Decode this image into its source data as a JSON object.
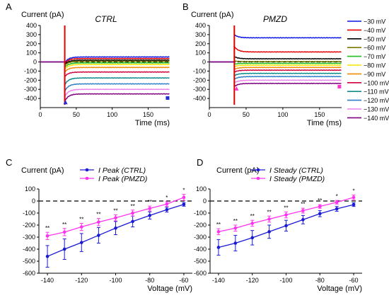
{
  "chart_data": [
    {
      "panel": "A",
      "type": "line",
      "title": "CTRL",
      "ylabel": "Current (pA)",
      "xlabel": "Time (ms)",
      "xlim": [
        0,
        180
      ],
      "ylim": [
        -500,
        400
      ],
      "xticks": [
        0,
        50,
        100,
        150
      ],
      "yticks": [
        -400,
        -300,
        -200,
        -100,
        0,
        100,
        200,
        300,
        400
      ],
      "x_tick_labels": [
        "0",
        "50",
        "100",
        "150"
      ],
      "y_tick_labels": [
        "-400",
        "-300",
        "-200",
        "-100",
        "0",
        "100",
        "200",
        "300",
        "400"
      ],
      "x_label_suffix": "175",
      "series": [
        {
          "name": "−30 mV",
          "color": "#0a15e6",
          "start": 0,
          "peak": -10,
          "steady": 55
        },
        {
          "name": "−40 mV",
          "color": "#e60000",
          "start": 0,
          "peak": -20,
          "steady": 38
        },
        {
          "name": "−50 mV",
          "color": "#000000",
          "start": 0,
          "peak": -30,
          "steady": 20
        },
        {
          "name": "−60 mV",
          "color": "#7a7a00",
          "start": 0,
          "peak": -40,
          "steady": 8
        },
        {
          "name": "−70 mV",
          "color": "#20c020",
          "start": 0,
          "peak": -60,
          "steady": -10
        },
        {
          "name": "−80 mV",
          "color": "#f2e600",
          "start": 0,
          "peak": -80,
          "steady": -28
        },
        {
          "name": "−90 mV",
          "color": "#f28c00",
          "start": 0,
          "peak": -110,
          "steady": -60
        },
        {
          "name": "−100 mV",
          "color": "#d0003c",
          "start": 0,
          "peak": -160,
          "steady": -110
        },
        {
          "name": "−110 mV",
          "color": "#0f8c8c",
          "start": 0,
          "peak": -250,
          "steady": -175
        },
        {
          "name": "−120 mV",
          "color": "#2a7fc8",
          "start": 0,
          "peak": -320,
          "steady": -240
        },
        {
          "name": "−130 mV",
          "color": "#ee82ee",
          "start": 0,
          "peak": -380,
          "steady": -300
        },
        {
          "name": "−140 mV",
          "color": "#800080",
          "start": 0,
          "peak": -430,
          "steady": -350
        }
      ],
      "markers": [
        {
          "symbol": "triangle",
          "x": 35,
          "y": -440,
          "color": "#2030d0"
        },
        {
          "symbol": "square",
          "x": 177,
          "y": -395,
          "color": "#2030d0"
        }
      ]
    },
    {
      "panel": "B",
      "type": "line",
      "title": "PMZD",
      "ylabel": "Current (pA)",
      "xlabel": "Time (ms)",
      "xlim": [
        0,
        180
      ],
      "ylim": [
        -500,
        400
      ],
      "xticks": [
        0,
        50,
        100,
        150
      ],
      "yticks": [
        -400,
        -300,
        -200,
        -100,
        0,
        100,
        200,
        300,
        400
      ],
      "x_tick_labels": [
        "0",
        "50",
        "100",
        "150"
      ],
      "y_tick_labels": [
        "-400",
        "-300",
        "-200",
        "-100",
        "0",
        "100",
        "200",
        "300",
        "400"
      ],
      "series": [
        {
          "name": "−30 mV",
          "color": "#0a15e6",
          "start": 0,
          "peak": 300,
          "steady": 265
        },
        {
          "name": "−40 mV",
          "color": "#e60000",
          "start": 0,
          "peak": 170,
          "steady": 110
        },
        {
          "name": "−50 mV",
          "color": "#000000",
          "start": 0,
          "peak": 60,
          "steady": 35
        },
        {
          "name": "−60 mV",
          "color": "#7a7a00",
          "start": 0,
          "peak": 10,
          "steady": 5
        },
        {
          "name": "−70 mV",
          "color": "#20c020",
          "start": 0,
          "peak": -25,
          "steady": -15
        },
        {
          "name": "−80 mV",
          "color": "#f2e600",
          "start": 0,
          "peak": -50,
          "steady": -35
        },
        {
          "name": "−90 mV",
          "color": "#f28c00",
          "start": 0,
          "peak": -80,
          "steady": -60
        },
        {
          "name": "−100 mV",
          "color": "#d0003c",
          "start": 0,
          "peak": -110,
          "steady": -90
        },
        {
          "name": "−110 mV",
          "color": "#0f8c8c",
          "start": 0,
          "peak": -150,
          "steady": -125
        },
        {
          "name": "−120 mV",
          "color": "#2a7fc8",
          "start": 0,
          "peak": -190,
          "steady": -160
        },
        {
          "name": "−130 mV",
          "color": "#ee82ee",
          "start": 0,
          "peak": -230,
          "steady": -200
        },
        {
          "name": "−140 mV",
          "color": "#800080",
          "start": 0,
          "peak": -270,
          "steady": -235
        }
      ],
      "markers": [
        {
          "symbol": "triangle",
          "x": 37,
          "y": -290,
          "color": "#ff33cc"
        },
        {
          "symbol": "square",
          "x": 177,
          "y": -270,
          "color": "#ff33cc"
        }
      ]
    },
    {
      "panel": "C",
      "type": "line",
      "ylabel": "Current (pA)",
      "xlabel": "Voltage (mV)",
      "xlim": [
        -145,
        -55
      ],
      "ylim": [
        -600,
        100
      ],
      "xticks": [
        -140,
        -120,
        -100,
        -80,
        -60
      ],
      "yticks": [
        -600,
        -500,
        -400,
        -300,
        -200,
        -100,
        0,
        100
      ],
      "x_tick_labels": [
        "-140",
        "-120",
        "-100",
        "-80",
        "-60"
      ],
      "y_tick_labels": [
        "-600",
        "-500",
        "-400",
        "-300",
        "-200",
        "-100",
        "0",
        "100"
      ],
      "legend_position": "top-right",
      "x": [
        -140,
        -130,
        -120,
        -110,
        -100,
        -90,
        -80,
        -70,
        -60
      ],
      "series": [
        {
          "name": "I Peak (CTRL)",
          "color": "#1a1ad6",
          "values": [
            -460,
            -400,
            -345,
            -285,
            -225,
            -170,
            -120,
            -72,
            -28
          ],
          "errors": [
            90,
            85,
            75,
            65,
            55,
            45,
            30,
            20,
            15
          ]
        },
        {
          "name": "I Peak (PMZD)",
          "color": "#ff33ee",
          "values": [
            -290,
            -258,
            -215,
            -175,
            -140,
            -100,
            -62,
            -25,
            30
          ],
          "errors": [
            30,
            30,
            30,
            30,
            25,
            25,
            20,
            20,
            25
          ]
        }
      ],
      "significance": [
        "**",
        "**",
        "**",
        "**",
        "**",
        "**",
        "**",
        "*",
        "*"
      ]
    },
    {
      "panel": "D",
      "type": "line",
      "ylabel": "Current (pA)",
      "xlabel": "Voltage (mV)",
      "xlim": [
        -145,
        -55
      ],
      "ylim": [
        -600,
        100
      ],
      "xticks": [
        -140,
        -120,
        -100,
        -80,
        -60
      ],
      "yticks": [
        -600,
        -500,
        -400,
        -300,
        -200,
        -100,
        0,
        100
      ],
      "x_tick_labels": [
        "-140",
        "-120",
        "-100",
        "-80",
        "-60"
      ],
      "y_tick_labels": [
        "-600",
        "-500",
        "-400",
        "-300",
        "-200",
        "-100",
        "0",
        "100"
      ],
      "legend_position": "top-right",
      "x": [
        -140,
        -130,
        -120,
        -110,
        -100,
        -90,
        -80,
        -70,
        -60
      ],
      "series": [
        {
          "name": "I Steady (CTRL)",
          "color": "#1a1ad6",
          "values": [
            -385,
            -350,
            -305,
            -255,
            -205,
            -155,
            -105,
            -65,
            -30
          ],
          "errors": [
            65,
            65,
            60,
            55,
            45,
            35,
            25,
            20,
            15
          ]
        },
        {
          "name": "I Steady (PMZD)",
          "color": "#ff33ee",
          "values": [
            -255,
            -225,
            -185,
            -150,
            -115,
            -80,
            -45,
            -10,
            30
          ],
          "errors": [
            25,
            25,
            25,
            25,
            25,
            20,
            15,
            15,
            20
          ]
        }
      ],
      "significance": [
        "**",
        "**",
        "**",
        "**",
        "**",
        "**",
        "**",
        "*",
        "*"
      ]
    }
  ],
  "panel_labels": [
    "A",
    "B",
    "C",
    "D"
  ]
}
